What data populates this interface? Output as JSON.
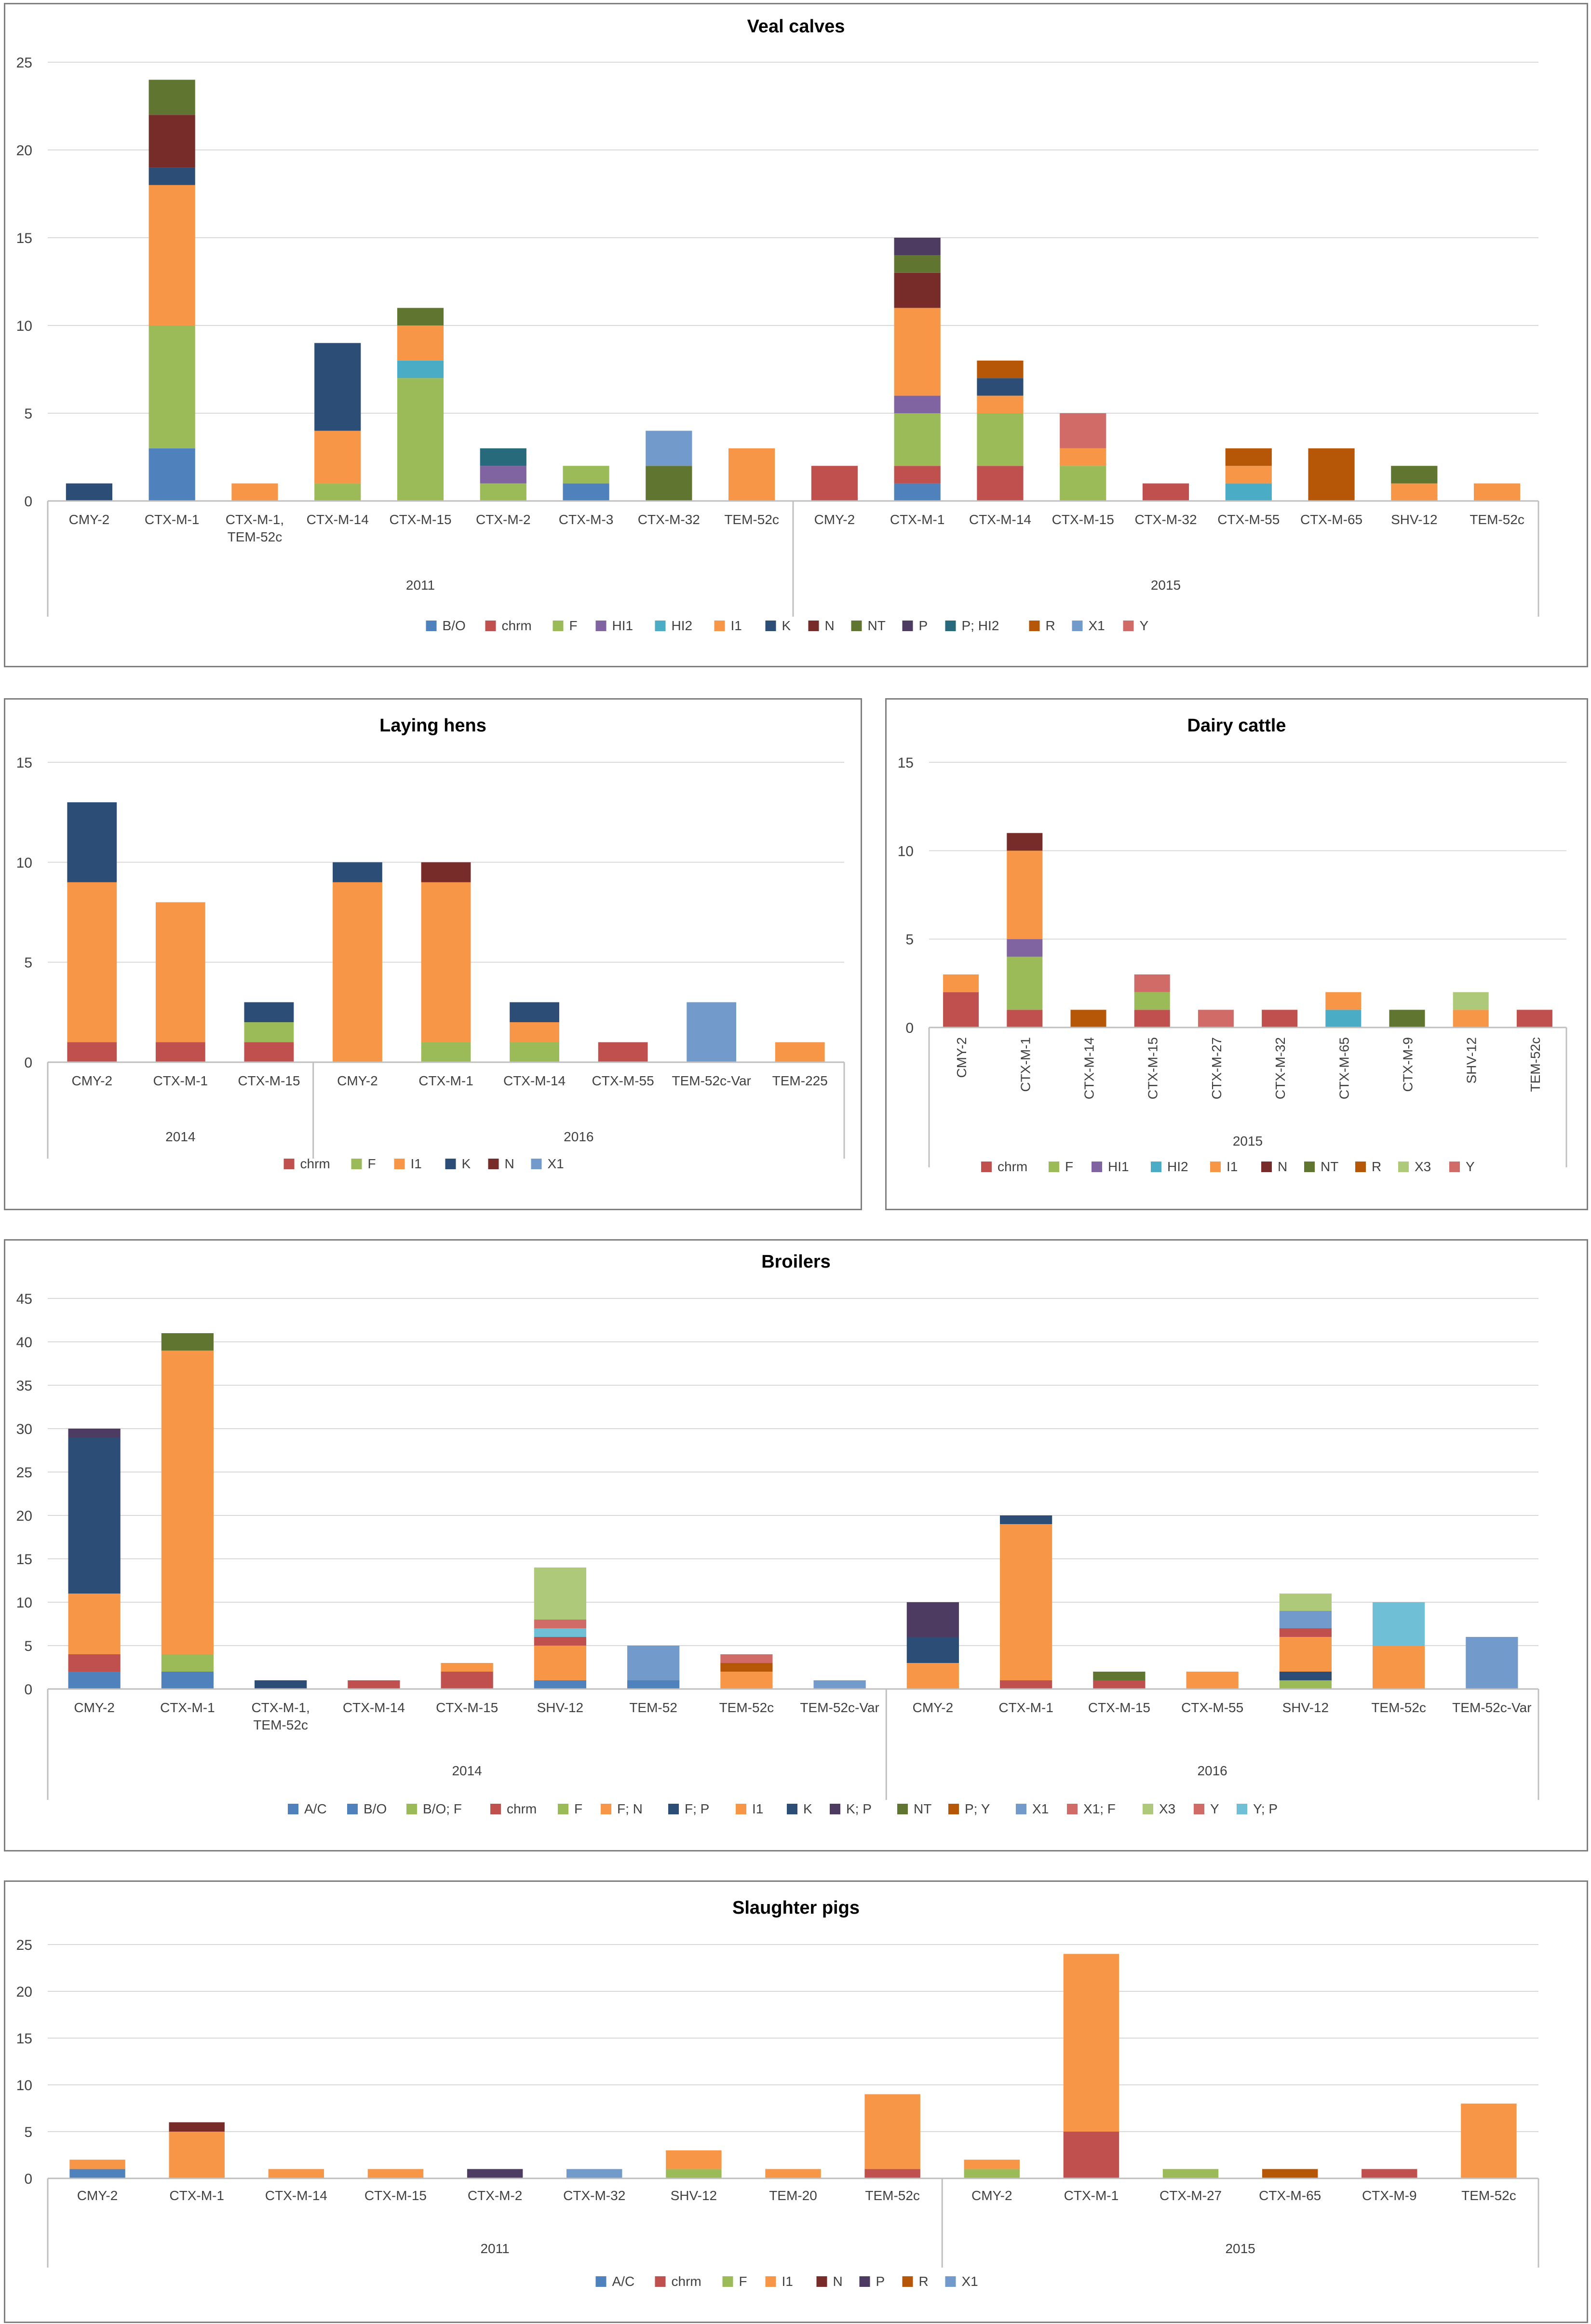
{
  "colors": {
    "A/C": "#4f81bd",
    "B/O": "#4f81bd",
    "chrm": "#c0504d",
    "F": "#9bbb59",
    "HI1": "#8064a2",
    "HI2": "#4bacc6",
    "I1": "#f79646",
    "K": "#2c4d75",
    "N": "#772c2a",
    "NT": "#5f7530",
    "P": "#4d3b62",
    "P; HI2": "#276a7c",
    "R": "#b65708",
    "X1": "#729aca",
    "Y": "#d16b68",
    "B/O; F": "#9bbb59",
    "F; N": "#f79646",
    "F; P": "#2c4d75",
    "K; P": "#4d3b62",
    "P; Y": "#b65708",
    "X1; F": "#d16b68",
    "X3": "#afc97a",
    "Y; P": "#6fc0d6"
  },
  "chart_data": [
    {
      "type": "bar",
      "stacked": true,
      "title": "Veal calves",
      "ylim": [
        0,
        25
      ],
      "yticks": [
        0,
        5,
        10,
        15,
        20,
        25
      ],
      "groups": [
        {
          "label": "2011",
          "categories": [
            "CMY-2",
            "CTX-M-1",
            "CTX-M-1, TEM-52c",
            "CTX-M-14",
            "CTX-M-15",
            "CTX-M-2",
            "CTX-M-3",
            "CTX-M-32",
            "TEM-52c"
          ]
        },
        {
          "label": "2015",
          "categories": [
            "CMY-2",
            "CTX-M-1",
            "CTX-M-14",
            "CTX-M-15",
            "CTX-M-32",
            "CTX-M-55",
            "CTX-M-65",
            "SHV-12",
            "TEM-52c"
          ]
        }
      ],
      "legend": [
        "B/O",
        "chrm",
        "F",
        "HI1",
        "HI2",
        "I1",
        "K",
        "N",
        "NT",
        "P",
        "P; HI2",
        "R",
        "X1",
        "Y"
      ],
      "stacks": [
        [
          [
            "K",
            1
          ]
        ],
        [
          [
            "B/O",
            3
          ],
          [
            "F",
            7
          ],
          [
            "I1",
            8
          ],
          [
            "K",
            1
          ],
          [
            "N",
            3
          ],
          [
            "NT",
            2
          ]
        ],
        [
          [
            "I1",
            1
          ]
        ],
        [
          [
            "F",
            1
          ],
          [
            "I1",
            3
          ],
          [
            "K",
            5
          ]
        ],
        [
          [
            "F",
            7
          ],
          [
            "HI2",
            1
          ],
          [
            "I1",
            2
          ],
          [
            "NT",
            1
          ]
        ],
        [
          [
            "F",
            1
          ],
          [
            "HI1",
            1
          ],
          [
            "P; HI2",
            1
          ]
        ],
        [
          [
            "B/O",
            1
          ],
          [
            "F",
            1
          ]
        ],
        [
          [
            "NT",
            2
          ],
          [
            "X1",
            2
          ]
        ],
        [
          [
            "I1",
            3
          ]
        ],
        [
          [
            "chrm",
            2
          ]
        ],
        [
          [
            "B/O",
            1
          ],
          [
            "chrm",
            1
          ],
          [
            "F",
            3
          ],
          [
            "HI1",
            1
          ],
          [
            "I1",
            5
          ],
          [
            "N",
            2
          ],
          [
            "NT",
            1
          ],
          [
            "P",
            1
          ]
        ],
        [
          [
            "chrm",
            2
          ],
          [
            "F",
            3
          ],
          [
            "I1",
            1
          ],
          [
            "K",
            1
          ],
          [
            "R",
            1
          ]
        ],
        [
          [
            "F",
            2
          ],
          [
            "I1",
            1
          ],
          [
            "Y",
            2
          ]
        ],
        [
          [
            "chrm",
            1
          ]
        ],
        [
          [
            "HI2",
            1
          ],
          [
            "I1",
            1
          ],
          [
            "R",
            1
          ]
        ],
        [
          [
            "R",
            3
          ]
        ],
        [
          [
            "I1",
            1
          ],
          [
            "NT",
            1
          ]
        ],
        [
          [
            "I1",
            1
          ]
        ]
      ]
    },
    {
      "type": "bar",
      "stacked": true,
      "title": "Laying hens",
      "ylim": [
        0,
        15
      ],
      "yticks": [
        0,
        5,
        10,
        15
      ],
      "groups": [
        {
          "label": "2014",
          "categories": [
            "CMY-2",
            "CTX-M-1",
            "CTX-M-15"
          ]
        },
        {
          "label": "2016",
          "categories": [
            "CMY-2",
            "CTX-M-1",
            "CTX-M-14",
            "CTX-M-55",
            "TEM-52c-Var",
            "TEM-225"
          ]
        }
      ],
      "legend": [
        "chrm",
        "F",
        "I1",
        "K",
        "N",
        "X1"
      ],
      "stacks": [
        [
          [
            "chrm",
            1
          ],
          [
            "I1",
            8
          ],
          [
            "K",
            4
          ]
        ],
        [
          [
            "chrm",
            1
          ],
          [
            "I1",
            7
          ]
        ],
        [
          [
            "chrm",
            1
          ],
          [
            "F",
            1
          ],
          [
            "K",
            1
          ]
        ],
        [
          [
            "I1",
            9
          ],
          [
            "K",
            1
          ]
        ],
        [
          [
            "F",
            1
          ],
          [
            "I1",
            8
          ],
          [
            "N",
            1
          ]
        ],
        [
          [
            "F",
            1
          ],
          [
            "I1",
            1
          ],
          [
            "K",
            1
          ]
        ],
        [
          [
            "chrm",
            1
          ]
        ],
        [
          [
            "X1",
            3
          ]
        ],
        [
          [
            "I1",
            1
          ]
        ]
      ]
    },
    {
      "type": "bar",
      "stacked": true,
      "title": "Dairy cattle",
      "ylim": [
        0,
        15
      ],
      "yticks": [
        0,
        5,
        10,
        15
      ],
      "groups": [
        {
          "label": "2015",
          "categories": [
            "CMY-2",
            "CTX-M-1",
            "CTX-M-14",
            "CTX-M-15",
            "CTX-M-27",
            "CTX-M-32",
            "CTX-M-65",
            "CTX-M-9",
            "SHV-12",
            "TEM-52c"
          ]
        }
      ],
      "legend": [
        "chrm",
        "F",
        "HI1",
        "HI2",
        "I1",
        "N",
        "NT",
        "R",
        "X3",
        "Y"
      ],
      "stacks": [
        [
          [
            "chrm",
            2
          ],
          [
            "I1",
            1
          ]
        ],
        [
          [
            "chrm",
            1
          ],
          [
            "F",
            3
          ],
          [
            "HI1",
            1
          ],
          [
            "I1",
            5
          ],
          [
            "N",
            1
          ]
        ],
        [
          [
            "R",
            1
          ]
        ],
        [
          [
            "chrm",
            1
          ],
          [
            "F",
            1
          ],
          [
            "Y",
            1
          ]
        ],
        [
          [
            "Y",
            1
          ]
        ],
        [
          [
            "chrm",
            1
          ]
        ],
        [
          [
            "HI2",
            1
          ],
          [
            "I1",
            1
          ]
        ],
        [
          [
            "NT",
            1
          ]
        ],
        [
          [
            "I1",
            1
          ],
          [
            "X3",
            1
          ]
        ],
        [
          [
            "chrm",
            1
          ]
        ]
      ]
    },
    {
      "type": "bar",
      "stacked": true,
      "title": "Broilers",
      "ylim": [
        0,
        45
      ],
      "yticks": [
        0,
        5,
        10,
        15,
        20,
        25,
        30,
        35,
        40,
        45
      ],
      "groups": [
        {
          "label": "2014",
          "categories": [
            "CMY-2",
            "CTX-M-1",
            "CTX-M-1, TEM-52c",
            "CTX-M-14",
            "CTX-M-15",
            "SHV-12",
            "TEM-52",
            "TEM-52c",
            "TEM-52c-Var"
          ]
        },
        {
          "label": "2016",
          "categories": [
            "CMY-2",
            "CTX-M-1",
            "CTX-M-15",
            "CTX-M-55",
            "SHV-12",
            "TEM-52c",
            "TEM-52c-Var"
          ]
        }
      ],
      "legend": [
        "A/C",
        "B/O",
        "B/O; F",
        "chrm",
        "F",
        "F; N",
        "F; P",
        "I1",
        "K",
        "K; P",
        "NT",
        "P; Y",
        "X1",
        "X1; F",
        "X3",
        "Y",
        "Y; P"
      ],
      "stacks": [
        [
          [
            "A/C",
            2
          ],
          [
            "chrm",
            2
          ],
          [
            "I1",
            7
          ],
          [
            "K",
            18
          ],
          [
            "K; P",
            1
          ]
        ],
        [
          [
            "A/C",
            2
          ],
          [
            "F",
            2
          ],
          [
            "I1",
            35
          ],
          [
            "NT",
            2
          ]
        ],
        [
          [
            "K",
            1
          ]
        ],
        [
          [
            "chrm",
            1
          ]
        ],
        [
          [
            "chrm",
            2
          ],
          [
            "I1",
            1
          ]
        ],
        [
          [
            "B/O",
            1
          ],
          [
            "I1",
            4
          ],
          [
            "chrm",
            1
          ],
          [
            "Y; P",
            1
          ],
          [
            "X1; F",
            1
          ],
          [
            "X3",
            6
          ]
        ],
        [
          [
            "B/O",
            1
          ],
          [
            "X1",
            4
          ]
        ],
        [
          [
            "I1",
            2
          ],
          [
            "P; Y",
            1
          ],
          [
            "Y",
            1
          ]
        ],
        [
          [
            "X1",
            1
          ]
        ],
        [
          [
            "I1",
            3
          ],
          [
            "K",
            3
          ],
          [
            "K; P",
            4
          ]
        ],
        [
          [
            "chrm",
            1
          ],
          [
            "F; N",
            1
          ],
          [
            "I1",
            17
          ],
          [
            "K",
            1
          ]
        ],
        [
          [
            "chrm",
            1
          ],
          [
            "NT",
            1
          ]
        ],
        [
          [
            "F; N",
            2
          ]
        ],
        [
          [
            "B/O; F",
            1
          ],
          [
            "F; P",
            1
          ],
          [
            "I1",
            4
          ],
          [
            "chrm",
            1
          ],
          [
            "X1",
            2
          ],
          [
            "X3",
            2
          ]
        ],
        [
          [
            "I1",
            5
          ],
          [
            "Y; P",
            5
          ]
        ],
        [
          [
            "X1",
            6
          ]
        ]
      ]
    },
    {
      "type": "bar",
      "stacked": true,
      "title": "Slaughter pigs",
      "ylim": [
        0,
        25
      ],
      "yticks": [
        0,
        5,
        10,
        15,
        20,
        25
      ],
      "groups": [
        {
          "label": "2011",
          "categories": [
            "CMY-2",
            "CTX-M-1",
            "CTX-M-14",
            "CTX-M-15",
            "CTX-M-2",
            "CTX-M-32",
            "SHV-12",
            "TEM-20",
            "TEM-52c"
          ]
        },
        {
          "label": "2015",
          "categories": [
            "CMY-2",
            "CTX-M-1",
            "CTX-M-27",
            "CTX-M-65",
            "CTX-M-9",
            "TEM-52c"
          ]
        }
      ],
      "legend": [
        "A/C",
        "chrm",
        "F",
        "I1",
        "N",
        "P",
        "R",
        "X1"
      ],
      "stacks": [
        [
          [
            "A/C",
            1
          ],
          [
            "I1",
            1
          ]
        ],
        [
          [
            "I1",
            5
          ],
          [
            "N",
            1
          ]
        ],
        [
          [
            "I1",
            1
          ]
        ],
        [
          [
            "I1",
            1
          ]
        ],
        [
          [
            "P",
            1
          ]
        ],
        [
          [
            "X1",
            1
          ]
        ],
        [
          [
            "F",
            1
          ],
          [
            "I1",
            2
          ]
        ],
        [
          [
            "I1",
            1
          ]
        ],
        [
          [
            "chrm",
            1
          ],
          [
            "I1",
            8
          ]
        ],
        [
          [
            "F",
            1
          ],
          [
            "I1",
            1
          ]
        ],
        [
          [
            "chrm",
            5
          ],
          [
            "I1",
            19
          ]
        ],
        [
          [
            "F",
            1
          ]
        ],
        [
          [
            "R",
            1
          ]
        ],
        [
          [
            "chrm",
            1
          ]
        ],
        [
          [
            "I1",
            8
          ]
        ]
      ]
    }
  ]
}
